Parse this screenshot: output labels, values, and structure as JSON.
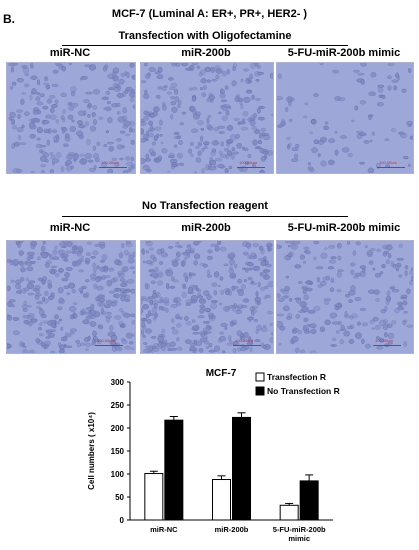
{
  "figure": {
    "panel_letter": "B.",
    "title": "MCF-7 (Luminal A: ER+, PR+, HER2- )",
    "section1": {
      "label": "Transfection with Oligofectamine",
      "columns": [
        "miR-NC",
        "miR-200b",
        "5-FU-miR-200b mimic"
      ],
      "scale_text": "100.00um"
    },
    "section2": {
      "label": "No Transfection reagent",
      "columns": [
        "miR-NC",
        "miR-200b",
        "5-FU-miR-200b mimic"
      ],
      "scale_text": "100.00um"
    }
  },
  "colors": {
    "micro_bg": "#9ea8d8",
    "cell": "#7f89c2",
    "cell_edge": "#5c66a4",
    "scale": "#e02020",
    "bar_series1": "#ffffff",
    "bar_series2": "#000000"
  },
  "chart_data": {
    "type": "bar",
    "title": "MCF-7",
    "ylabel": "Cell numbers ( x10⁴)",
    "xlabel": "",
    "categories": [
      "miR-NC",
      "miR-200b",
      "5-FU-miR-200b mimic"
    ],
    "category_lines": [
      [
        "miR-NC"
      ],
      [
        "miR-200b"
      ],
      [
        "5-FU-miR-200b",
        "mimic"
      ]
    ],
    "ylim": [
      0,
      300
    ],
    "yticks": [
      0,
      50,
      100,
      150,
      200,
      250,
      300
    ],
    "series": [
      {
        "name": "Transfection R",
        "values": [
          101,
          88,
          32
        ],
        "errors": [
          5,
          8,
          4
        ]
      },
      {
        "name": "No Transfection R",
        "values": [
          217,
          223,
          85
        ],
        "errors": [
          8,
          10,
          13
        ]
      }
    ],
    "legend_position": "top-right",
    "grid": false,
    "error_bars": true
  }
}
